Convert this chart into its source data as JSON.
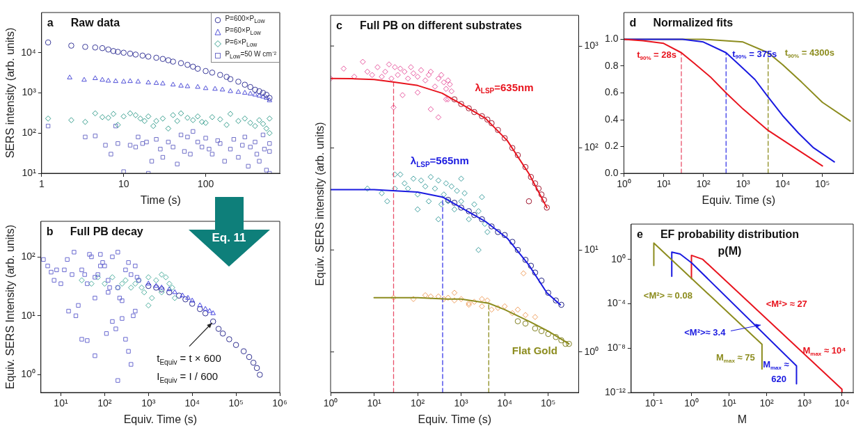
{
  "chart_data": [
    {
      "type": "scatter",
      "title": "Raw data",
      "xlabel": "Time (s)",
      "ylabel": "SERS intensity (arb. units)",
      "log": "xy",
      "legend": "top right",
      "xlim": [
        1,
        800
      ],
      "xticks": [
        1,
        10,
        100
      ],
      "ylim": [
        10,
        100000
      ],
      "yticks": [
        {
          "value": 10,
          "label": "10¹"
        },
        {
          "value": 100,
          "label": "10²"
        },
        {
          "value": 1000,
          "label": "10³"
        },
        {
          "value": 10000,
          "label": "10⁴"
        }
      ],
      "annotations": [
        "a"
      ],
      "series": [
        {
          "name": "P=600×P$_{Low}$",
          "color": "#3a3a9a",
          "marker": "circle",
          "x": [
            1.2,
            2.3,
            3.4,
            4.5,
            5.5,
            6.5,
            7.5,
            8.5,
            10,
            12,
            14,
            17,
            20,
            25,
            30,
            35,
            40,
            50,
            60,
            70,
            80,
            100,
            120,
            150,
            180,
            200,
            250,
            300,
            350,
            400,
            450,
            500,
            550,
            600
          ],
          "values": [
            18000,
            15000,
            14000,
            13500,
            13000,
            12000,
            11000,
            10500,
            10000,
            9500,
            9000,
            8500,
            8000,
            7500,
            7000,
            6500,
            6000,
            5500,
            5000,
            4500,
            4000,
            3500,
            3200,
            2800,
            2500,
            2200,
            1900,
            1600,
            1400,
            1200,
            1100,
            1000,
            900,
            750
          ]
        },
        {
          "name": "P=60×P$_{Low}$",
          "color": "#5050d8",
          "marker": "triangle",
          "x": [
            2.2,
            3.3,
            4.5,
            5.5,
            6.5,
            8,
            10,
            12,
            15,
            20,
            25,
            30,
            40,
            50,
            60,
            80,
            100,
            130,
            160,
            200,
            250,
            300,
            350,
            400,
            450,
            500,
            550,
            600
          ],
          "values": [
            2400,
            2100,
            2300,
            2100,
            2000,
            1950,
            1900,
            1950,
            1900,
            1800,
            1750,
            1700,
            1600,
            1500,
            1450,
            1400,
            1300,
            1250,
            1200,
            1100,
            1050,
            1000,
            950,
            900,
            850,
            800,
            750,
            650
          ]
        },
        {
          "name": "P=6×P$_{Low}$",
          "color": "#3aa090",
          "marker": "diamond",
          "x": [
            1.2,
            2.3,
            3.4,
            4.5,
            5.5,
            6.5,
            7.5,
            8.5,
            10,
            12,
            14,
            16,
            18,
            20,
            23,
            25,
            30,
            35,
            40,
            45,
            50,
            60,
            70,
            80,
            90,
            100,
            120,
            150,
            180,
            200,
            250,
            300,
            350,
            400,
            450,
            500,
            550,
            600,
            600
          ],
          "values": [
            230,
            210,
            190,
            310,
            250,
            240,
            300,
            160,
            260,
            310,
            280,
            230,
            200,
            260,
            150,
            200,
            230,
            130,
            280,
            200,
            310,
            240,
            210,
            260,
            190,
            180,
            250,
            220,
            160,
            300,
            200,
            230,
            180,
            150,
            210,
            170,
            130,
            230,
            100
          ]
        },
        {
          "name": "P$_{Low}$=50 W cm⁻²",
          "color": "#7070c8",
          "marker": "square",
          "x": [
            1.2,
            3.4,
            4.5,
            6,
            7,
            8,
            8.5,
            10,
            12,
            14,
            15,
            17,
            19,
            20,
            22,
            25,
            28,
            30,
            35,
            40,
            45,
            50,
            55,
            60,
            65,
            70,
            80,
            90,
            100,
            110,
            120,
            140,
            150,
            170,
            200,
            220,
            250,
            280,
            300,
            330,
            350,
            400,
            420,
            450,
            500,
            520,
            550,
            600,
            600,
            600
          ],
          "values": [
            150,
            80,
            85,
            50,
            30,
            150,
            55,
            11,
            50,
            45,
            80,
            55,
            60,
            10,
            20,
            70,
            40,
            25,
            60,
            45,
            17,
            90,
            35,
            80,
            30,
            110,
            60,
            45,
            75,
            40,
            30,
            65,
            55,
            20,
            40,
            70,
            25,
            50,
            80,
            15,
            45,
            60,
            30,
            20,
            90,
            40,
            12,
            35,
            55,
            10
          ]
        }
      ]
    },
    {
      "type": "scatter",
      "title": "Full PB decay",
      "xlabel": "Equiv. Time (s)",
      "ylabel": "Equiv. SERS Intensity (arb. units)",
      "log": "xy",
      "xlim": [
        3.5,
        1000000
      ],
      "xticks": [
        {
          "value": 10,
          "label": "10¹"
        },
        {
          "value": 100,
          "label": "10²"
        },
        {
          "value": 1000,
          "label": "10³"
        },
        {
          "value": 10000,
          "label": "10⁴"
        },
        {
          "value": 100000,
          "label": "10⁵"
        },
        {
          "value": 1000000,
          "label": "10⁶"
        }
      ],
      "ylim": [
        0.5,
        400
      ],
      "yticks": [
        {
          "value": 1,
          "label": "10⁰"
        },
        {
          "value": 10,
          "label": "10¹"
        },
        {
          "value": 100,
          "label": "10²"
        }
      ],
      "annotations": [
        "b",
        "Eq. 11",
        {
          "text": "t$_{Equiv}$ = t × 600",
          "x": 30000,
          "y": 8
        },
        "I$_{Equiv}$ = I / 600"
      ],
      "series": [
        {
          "color": "#6a6ad0",
          "marker": "square",
          "x": [
            4,
            5,
            6,
            7,
            8,
            10,
            12,
            14,
            15,
            18,
            20,
            22,
            25,
            30,
            30,
            35,
            40,
            40,
            45,
            50,
            60,
            60,
            70,
            80,
            90,
            100,
            110,
            120,
            130,
            150,
            150,
            180,
            200,
            200,
            220,
            250,
            250,
            300,
            300,
            350,
            350,
            400,
            400,
            450,
            500,
            500,
            550,
            600,
            200,
            120,
            80,
            60
          ],
          "values": [
            90,
            70,
            55,
            40,
            60,
            35,
            60,
            90,
            12,
            50,
            120,
            10,
            15,
            60,
            4,
            50,
            3.8,
            35,
            110,
            100,
            2.1,
            20,
            50,
            110,
            80,
            70,
            5,
            40,
            30,
            8,
            100,
            6,
            30,
            120,
            20,
            18,
            9,
            60,
            4,
            80,
            2.5,
            50,
            1.5,
            10,
            70,
            12,
            45,
            40,
            0.8,
            25,
            70,
            45
          ]
        },
        {
          "color": "#50b0a0",
          "marker": "diamond",
          "x": [
            30,
            50,
            70,
            100,
            150,
            200,
            250,
            300,
            400,
            500,
            600,
            700,
            800,
            1000,
            1200,
            1500,
            2000,
            2500,
            3000,
            3500,
            4000,
            1000,
            2000
          ],
          "values": [
            40,
            35,
            45,
            35,
            45,
            30,
            35,
            40,
            30,
            35,
            40,
            30,
            25,
            45,
            20,
            40,
            25,
            45,
            35,
            30,
            20,
            15,
            50
          ]
        },
        {
          "color": "#4040e0",
          "marker": "triangle",
          "x": [
            1000,
            1500,
            2000,
            3000,
            4000,
            6000,
            8000,
            10000,
            15000,
            20000,
            25000,
            30000
          ],
          "values": [
            35,
            32,
            30,
            28,
            25,
            22,
            20,
            18,
            15,
            13,
            12,
            11
          ]
        },
        {
          "color": "#303090",
          "marker": "circle",
          "x": [
            1000,
            1500,
            2000,
            3000,
            5000,
            7000,
            10000,
            15000,
            20000,
            30000,
            40000,
            50000,
            70000,
            100000,
            150000,
            200000,
            250000,
            300000,
            350000
          ],
          "values": [
            32,
            30,
            28,
            25,
            22,
            19,
            16,
            13,
            11,
            8,
            6,
            5,
            4,
            3.2,
            2.5,
            2,
            1.6,
            1.3,
            1.0
          ]
        }
      ]
    },
    {
      "type": "scatter",
      "title": "Full PB on different substrates",
      "xlabel": "Equiv. Time (s)",
      "ylabel": "Equiv. SERS intensity (arb. units)",
      "log": "xy",
      "marker": "none",
      "line_style": "solid",
      "xlim": [
        1,
        500000
      ],
      "xticks": [
        {
          "value": 1,
          "label": "10⁰"
        },
        {
          "value": 10,
          "label": "10¹"
        },
        {
          "value": 100,
          "label": "10²"
        },
        {
          "value": 1000,
          "label": "10³"
        },
        {
          "value": 10000,
          "label": "10⁴"
        },
        {
          "value": 100000,
          "label": "10⁵"
        }
      ],
      "ylim": [
        0.4,
        2000
      ],
      "yticks": [
        {
          "value": 1,
          "label": "10⁰"
        },
        {
          "value": 10,
          "label": "10¹"
        },
        {
          "value": 100,
          "label": "10²"
        },
        {
          "value": 1000,
          "label": "10³"
        }
      ],
      "annotations": [
        "c",
        "λ$_{LSP}$=635nm",
        "λ$_{LSP}$=565nm",
        "Flat Gold"
      ],
      "series": [
        {
          "color": "#e85aa0",
          "marker": "diamond",
          "x": [
            1,
            2,
            3.5,
            5.5,
            7,
            9,
            12,
            15,
            18,
            22,
            25,
            28,
            30,
            35,
            40,
            50,
            60,
            70,
            80,
            100,
            120,
            150,
            180,
            200,
            250,
            300,
            350,
            400,
            450,
            500,
            550,
            600,
            200,
            300,
            450,
            45,
            100,
            500
          ],
          "values": [
            480,
            600,
            500,
            700,
            560,
            520,
            620,
            500,
            560,
            660,
            480,
            250,
            620,
            520,
            600,
            560,
            480,
            620,
            540,
            500,
            580,
            460,
            520,
            560,
            400,
            480,
            520,
            440,
            380,
            460,
            420,
            360,
            240,
            200,
            300,
            330,
            350,
            300
          ]
        },
        {
          "color": "#a01830",
          "marker": "circle",
          "x": [
            700,
            1000,
            1500,
            2000,
            3000,
            4000,
            5000,
            7000,
            10000,
            15000,
            20000,
            30000,
            40000,
            50000,
            60000,
            70000,
            80000,
            93000,
            36000
          ],
          "values": [
            300,
            270,
            245,
            225,
            205,
            190,
            175,
            150,
            125,
            100,
            85,
            65,
            52,
            45,
            40,
            35,
            31,
            26,
            30
          ]
        },
        {
          "color": "#40a0a0",
          "marker": "diamond",
          "x": [
            7,
            15,
            20,
            30,
            40,
            50,
            60,
            80,
            100,
            120,
            150,
            180,
            200,
            250,
            300,
            350,
            400,
            450,
            500,
            600,
            700,
            800,
            1000,
            1200,
            1500,
            2000,
            2500,
            3000,
            3500,
            4000,
            30,
            100,
            300,
            1000,
            2500
          ],
          "values": [
            40,
            36,
            30,
            55,
            55,
            45,
            40,
            50,
            35,
            48,
            42,
            30,
            52,
            40,
            48,
            28,
            35,
            45,
            30,
            42,
            25,
            38,
            30,
            36,
            20,
            28,
            24,
            33,
            18,
            15,
            40,
            25,
            20,
            50,
            10
          ]
        },
        {
          "color": "#202080",
          "marker": "circle",
          "x": [
            500,
            700,
            1000,
            1500,
            2000,
            3000,
            5000,
            7000,
            10000,
            15000,
            20000,
            30000,
            40000,
            50000,
            70000,
            100000,
            150000,
            200000
          ],
          "values": [
            31,
            29,
            26,
            24,
            22,
            20,
            17,
            15,
            14,
            12,
            10,
            8,
            7,
            6,
            5,
            3.8,
            3.2,
            2.9
          ]
        },
        {
          "color": "#f0a060",
          "marker": "diamond",
          "x": [
            28,
            80,
            150,
            200,
            300,
            400,
            500,
            700,
            1000,
            1500,
            2000,
            3000,
            4000,
            5000,
            7000,
            10000,
            15000,
            20000,
            30000,
            27000,
            50000,
            700,
            3000,
            1500
          ],
          "values": [
            3.4,
            3.3,
            3.6,
            3.5,
            3.5,
            3.3,
            3.4,
            3.2,
            3.3,
            3.0,
            3.1,
            2.8,
            3.2,
            2.6,
            2.7,
            2.8,
            2.4,
            2.6,
            2.3,
            5.9,
            2.2,
            3.8,
            3.3,
            2.9
          ]
        },
        {
          "color": "#808020",
          "marker": "circle",
          "x": [
            20000,
            30000,
            50000,
            70000,
            100000,
            150000,
            200000,
            250000,
            300000
          ],
          "values": [
            2.0,
            1.9,
            1.7,
            1.6,
            1.5,
            1.4,
            1.3,
            1.2,
            1.2
          ]
        },
        {
          "type": "line",
          "color": "#e8141e",
          "x": [
            1,
            3,
            10,
            27,
            100,
            363,
            1000,
            3630,
            11500,
            36000,
            93000
          ],
          "values": [
            480,
            478,
            470,
            445,
            410,
            345,
            270,
            195,
            118,
            56,
            26
          ]
        },
        {
          "type": "line",
          "color": "#1a1ae0",
          "x": [
            1,
            10,
            100,
            375,
            1000,
            3630,
            11500,
            36000,
            93000,
            190000
          ],
          "values": [
            39,
            39,
            37,
            33,
            26,
            19,
            13,
            7.1,
            3.8,
            2.9
          ]
        },
        {
          "type": "line",
          "color": "#8c8c1e",
          "x": [
            10,
            100,
            475,
            1000,
            4300,
            10000,
            36000,
            100000,
            300000
          ],
          "values": [
            3.4,
            3.4,
            3.3,
            3.3,
            3.0,
            2.6,
            2.0,
            1.6,
            1.2
          ]
        },
        {
          "type": "line",
          "color": "#e8506a",
          "line_style": "dashed",
          "x": [
            28,
            28
          ],
          "values": [
            0.4,
            445
          ]
        },
        {
          "type": "line",
          "color": "#3a3ae8",
          "line_style": "dashed",
          "x": [
            375,
            375
          ],
          "values": [
            0.4,
            33
          ]
        },
        {
          "type": "line",
          "color": "#8c8c1e",
          "line_style": "dashed",
          "x": [
            4300,
            4300
          ],
          "values": [
            0.4,
            3.0
          ]
        }
      ]
    },
    {
      "type": "line",
      "title": "Normalized fits",
      "xlabel": "Equiv. Time (s)",
      "log": "x",
      "marker": "none",
      "line_style": "solid",
      "xlim": [
        1,
        600000
      ],
      "xticks": [
        {
          "value": 1,
          "label": "10⁰"
        },
        {
          "value": 10,
          "label": "10¹"
        },
        {
          "value": 100,
          "label": "10²"
        },
        {
          "value": 1000,
          "label": "10³"
        },
        {
          "value": 10000,
          "label": "10⁴"
        },
        {
          "value": 100000,
          "label": "10⁵"
        }
      ],
      "ylim": [
        0,
        1.2
      ],
      "yticks": [
        {
          "value": 0,
          "label": "0.0"
        },
        {
          "value": 0.2,
          "label": "0.2"
        },
        {
          "value": 0.4,
          "label": "0.4"
        },
        {
          "value": 0.6,
          "label": "0.6"
        },
        {
          "value": 0.8,
          "label": "0.8"
        },
        {
          "value": 1,
          "label": "1.0"
        }
      ],
      "annotations": [
        "d",
        "t$_{90%}$ = 28s",
        "t$_{90%}$ = 375s",
        "t$_{90%}$ = 4300s"
      ],
      "series": [
        {
          "color": "#e8141e",
          "x": [
            1,
            3,
            10,
            28,
            60,
            150,
            375,
            1000,
            4300,
            20000,
            100000
          ],
          "values": [
            1.0,
            0.99,
            0.97,
            0.9,
            0.82,
            0.72,
            0.6,
            0.48,
            0.32,
            0.19,
            0.055
          ]
        },
        {
          "color": "#1a1ae0",
          "x": [
            1,
            30,
            100,
            375,
            800,
            2000,
            4300,
            10000,
            25000,
            60000,
            200000
          ],
          "values": [
            1.0,
            1.0,
            0.98,
            0.9,
            0.81,
            0.7,
            0.57,
            0.43,
            0.3,
            0.19,
            0.085
          ]
        },
        {
          "color": "#8c8c1e",
          "x": [
            1,
            100,
            1000,
            4300,
            10000,
            30000,
            100000,
            500000
          ],
          "values": [
            1.0,
            1.0,
            0.98,
            0.9,
            0.81,
            0.68,
            0.53,
            0.39
          ]
        },
        {
          "color": "#e8506a",
          "line_style": "dashed",
          "x": [
            28,
            28
          ],
          "values": [
            0,
            0.9
          ]
        },
        {
          "color": "#3a3ae8",
          "line_style": "dashed",
          "x": [
            375,
            375
          ],
          "values": [
            0,
            0.9
          ]
        },
        {
          "color": "#8c8c1e",
          "line_style": "dashed",
          "x": [
            4300,
            4300
          ],
          "values": [
            0,
            0.9
          ]
        }
      ]
    },
    {
      "type": "line",
      "title": "EF probability distribution",
      "subtitle": "p(M)",
      "xlabel": "M",
      "log": "xy",
      "marker": "none",
      "line_style": "solid",
      "xlim": [
        0.025,
        20000
      ],
      "xticks": [
        {
          "value": 0.1,
          "label": "10⁻¹"
        },
        {
          "value": 1,
          "label": "10⁰"
        },
        {
          "value": 10,
          "label": "10¹"
        },
        {
          "value": 100,
          "label": "10²"
        },
        {
          "value": 1000,
          "label": "10³"
        },
        {
          "value": 10000,
          "label": "10⁴"
        }
      ],
      "ylim": [
        1e-12,
        1500
      ],
      "yticks": [
        {
          "value": 1e-12,
          "label": "10⁻¹²"
        },
        {
          "value": 1e-08,
          "label": "10⁻⁸"
        },
        {
          "value": 0.0001,
          "label": "10⁻⁴"
        },
        {
          "value": 1,
          "label": "10⁰"
        }
      ],
      "annotations": [
        "e",
        "<M²> ≈ 0.08",
        "<M²> ≈ 27",
        "<M²>≈ 3.4",
        "M$_{max}$ ≈ 75",
        "M$_{max}$ ≈",
        "620",
        "M$_{max}$ ≈ 10⁴"
      ],
      "series": [
        {
          "color": "#8c8c1e",
          "x": [
            0.1,
            0.1,
            75,
            75
          ],
          "values": [
            0.28,
            29,
            2.2e-08,
            1.3e-10
          ]
        },
        {
          "color": "#1a1ae0",
          "x": [
            0.3,
            0.3,
            0.5,
            1,
            620,
            620
          ],
          "values": [
            0.03,
            4.5,
            3,
            0.5,
            2.5e-10,
            6e-12
          ]
        },
        {
          "color": "#e8141e",
          "x": [
            1,
            1,
            2,
            10000,
            10000
          ],
          "values": [
            0.018,
            2.3,
            1.0,
            2e-12,
            1e-12
          ]
        }
      ]
    }
  ]
}
